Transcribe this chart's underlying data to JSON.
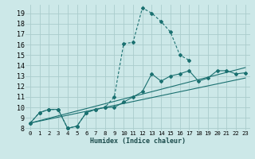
{
  "xlabel": "Humidex (Indice chaleur)",
  "bg_color": "#cce8e8",
  "grid_color": "#aacccc",
  "line_color": "#1a7070",
  "xlim": [
    -0.5,
    23.5
  ],
  "ylim": [
    7.8,
    19.8
  ],
  "xticks": [
    0,
    1,
    2,
    3,
    4,
    5,
    6,
    7,
    8,
    9,
    10,
    11,
    12,
    13,
    14,
    15,
    16,
    17,
    18,
    19,
    20,
    21,
    22,
    23
  ],
  "yticks": [
    8,
    9,
    10,
    11,
    12,
    13,
    14,
    15,
    16,
    17,
    18,
    19
  ],
  "series_dashed": {
    "x": [
      0,
      1,
      2,
      3,
      4,
      5,
      6,
      7,
      8,
      9,
      10,
      11,
      12,
      13,
      14,
      15,
      16,
      17
    ],
    "y": [
      8.5,
      9.5,
      9.8,
      9.8,
      8.0,
      8.2,
      9.5,
      9.8,
      10.0,
      11.0,
      16.1,
      16.2,
      19.5,
      19.0,
      18.2,
      17.2,
      15.0,
      14.5
    ]
  },
  "series_solid_markers": {
    "x": [
      0,
      1,
      2,
      3,
      4,
      5,
      6,
      7,
      8,
      9,
      10,
      11,
      12,
      13,
      14,
      15,
      16,
      17,
      18,
      19,
      20,
      21,
      22,
      23
    ],
    "y": [
      8.5,
      9.5,
      9.8,
      9.8,
      8.0,
      8.2,
      9.5,
      9.8,
      10.0,
      10.0,
      10.5,
      11.0,
      11.5,
      13.2,
      12.5,
      13.0,
      13.2,
      13.5,
      12.5,
      12.8,
      13.5,
      13.5,
      13.2,
      13.3
    ]
  },
  "series_line1": {
    "x": [
      0,
      23
    ],
    "y": [
      8.5,
      12.8
    ]
  },
  "series_line2": {
    "x": [
      0,
      23
    ],
    "y": [
      8.5,
      13.8
    ]
  }
}
